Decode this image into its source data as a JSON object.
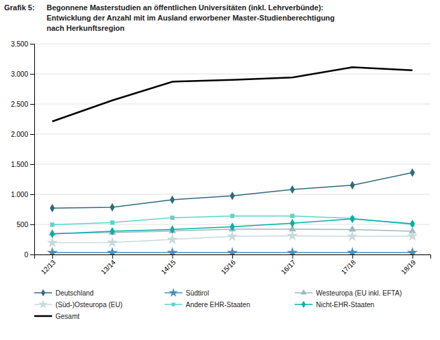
{
  "chart_data": {
    "type": "line",
    "title": [
      "Grafik 5:",
      "Begonnene Masterstudien an öffentlichen Universitäten (inkl. Lehrverbünde):",
      "Entwicklung der Anzahl mit im Ausland erworbener Master-Studienberechtigung",
      "nach Herkunftsregion"
    ],
    "categories": [
      "12/13",
      "13/14",
      "14/15",
      "15/16",
      "16/17",
      "17/18",
      "18/19"
    ],
    "series": [
      {
        "name": "Deutschland",
        "color": "#2e6b7b",
        "marker": "diamond",
        "values": [
          770,
          785,
          910,
          975,
          1080,
          1150,
          1360
        ]
      },
      {
        "name": "Südtirol",
        "color": "#4a90b8",
        "marker": "star",
        "values": [
          30,
          30,
          30,
          30,
          30,
          30,
          30
        ]
      },
      {
        "name": "Westeuropa (EU inkl. EFTA)",
        "color": "#a0b8c0",
        "marker": "triangle",
        "values": [
          350,
          365,
          390,
          420,
          420,
          415,
          385
        ]
      },
      {
        "name": "(Süd-)Osteuropa (EU)",
        "color": "#c8dada",
        "marker": "star",
        "values": [
          195,
          200,
          250,
          300,
          310,
          300,
          305
        ]
      },
      {
        "name": "Andere EHR-Staaten",
        "color": "#5dd5c8",
        "marker": "square",
        "values": [
          495,
          530,
          610,
          640,
          640,
          600,
          500
        ]
      },
      {
        "name": "Nicht-EHR-Staaten",
        "color": "#00b0a8",
        "marker": "diamond",
        "values": [
          340,
          385,
          415,
          460,
          520,
          590,
          510
        ]
      },
      {
        "name": "Gesamt",
        "color": "#000000",
        "values": [
          2210,
          2560,
          2870,
          2900,
          2940,
          3110,
          3060
        ]
      }
    ],
    "ylim": [
      0,
      3500
    ],
    "yticks": [
      0,
      500,
      {
        "value": 1000,
        "label": "1.000"
      },
      {
        "value": 1500,
        "label": "1.500"
      },
      {
        "value": 2000,
        "label": "2.000"
      },
      {
        "value": 2500,
        "label": "2.500"
      },
      {
        "value": 3000,
        "label": "3.000"
      },
      {
        "value": 3500,
        "label": "3.500"
      }
    ],
    "grid": true,
    "legend": "bottom"
  }
}
